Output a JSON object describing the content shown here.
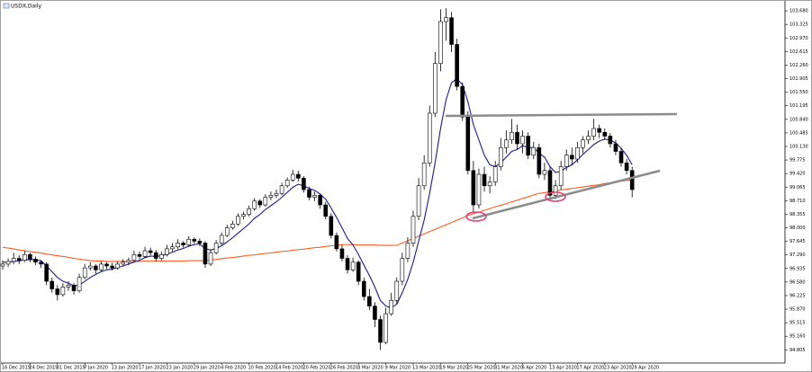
{
  "chart_data": {
    "type": "candlestick",
    "title": "USDX,Daily",
    "categories": [
      "16 Dec 2019",
      null,
      null,
      null,
      null,
      "24 Dec 2019",
      null,
      null,
      null,
      null,
      "31 Dec 2019",
      null,
      null,
      null,
      null,
      "7 Jan 2020",
      null,
      null,
      null,
      null,
      "13 Jan 2020",
      null,
      null,
      null,
      null,
      "17 Jan 2020",
      null,
      null,
      null,
      null,
      "23 Jan 2020",
      null,
      null,
      null,
      null,
      "29 Jan 2020",
      null,
      null,
      null,
      null,
      "4 Feb 2020",
      null,
      null,
      null,
      null,
      "10 Feb 2020",
      null,
      null,
      null,
      null,
      "14 Feb 2020",
      null,
      null,
      null,
      null,
      "20 Feb 2020",
      null,
      null,
      null,
      null,
      "26 Feb 2020",
      null,
      null,
      null,
      null,
      "3 Mar 2020",
      null,
      null,
      null,
      null,
      "9 Mar 2020",
      null,
      null,
      null,
      null,
      "13 Mar 2020",
      null,
      null,
      null,
      null,
      "19 Mar 2020",
      null,
      null,
      null,
      null,
      "25 Mar 2020",
      null,
      null,
      null,
      null,
      "31 Mar 2020",
      null,
      null,
      null,
      null,
      "6 Apr 2020",
      null,
      null,
      null,
      null,
      "13 Apr 2020",
      null,
      null,
      null,
      null,
      "17 Apr 2020",
      null,
      null,
      null,
      null,
      "23 Apr 2020",
      null,
      null,
      null,
      null,
      "29 Apr 2020"
    ],
    "ohlc": [
      [
        97.0,
        97.15,
        96.9,
        97.05
      ],
      [
        97.05,
        97.2,
        96.98,
        97.12
      ],
      [
        97.12,
        97.35,
        97.05,
        97.2
      ],
      [
        97.2,
        97.28,
        97.05,
        97.15
      ],
      [
        97.15,
        97.4,
        97.1,
        97.3
      ],
      [
        97.3,
        97.35,
        97.1,
        97.18
      ],
      [
        97.18,
        97.25,
        97.02,
        97.1
      ],
      [
        97.1,
        97.15,
        96.95,
        97.05
      ],
      [
        97.05,
        97.1,
        96.5,
        96.6
      ],
      [
        96.6,
        96.7,
        96.3,
        96.4
      ],
      [
        96.4,
        96.5,
        96.1,
        96.25
      ],
      [
        96.25,
        96.55,
        96.2,
        96.45
      ],
      [
        96.45,
        96.6,
        96.35,
        96.5
      ],
      [
        96.5,
        96.55,
        96.25,
        96.35
      ],
      [
        96.35,
        96.8,
        96.3,
        96.7
      ],
      [
        96.7,
        97.05,
        96.65,
        96.95
      ],
      [
        96.95,
        97.1,
        96.88,
        97.0
      ],
      [
        97.0,
        97.05,
        96.8,
        96.9
      ],
      [
        96.9,
        97.12,
        96.85,
        97.05
      ],
      [
        97.05,
        97.1,
        96.92,
        97.0
      ],
      [
        97.0,
        97.08,
        96.88,
        96.95
      ],
      [
        96.95,
        97.12,
        96.9,
        97.05
      ],
      [
        97.05,
        97.18,
        97.0,
        97.1
      ],
      [
        97.1,
        97.22,
        97.02,
        97.15
      ],
      [
        97.15,
        97.4,
        97.1,
        97.3
      ],
      [
        97.3,
        97.38,
        97.18,
        97.25
      ],
      [
        97.25,
        97.5,
        97.2,
        97.4
      ],
      [
        97.4,
        97.48,
        97.28,
        97.35
      ],
      [
        97.35,
        97.42,
        97.12,
        97.2
      ],
      [
        97.2,
        97.38,
        97.15,
        97.3
      ],
      [
        97.3,
        97.55,
        97.25,
        97.45
      ],
      [
        97.45,
        97.6,
        97.38,
        97.5
      ],
      [
        97.5,
        97.7,
        97.45,
        97.6
      ],
      [
        97.6,
        97.65,
        97.48,
        97.55
      ],
      [
        97.55,
        97.78,
        97.5,
        97.7
      ],
      [
        97.7,
        97.75,
        97.58,
        97.65
      ],
      [
        97.65,
        97.72,
        97.52,
        97.6
      ],
      [
        97.6,
        97.65,
        96.95,
        97.05
      ],
      [
        97.05,
        97.42,
        97.0,
        97.35
      ],
      [
        97.35,
        97.68,
        97.3,
        97.6
      ],
      [
        97.6,
        97.88,
        97.55,
        97.8
      ],
      [
        97.8,
        98.08,
        97.75,
        98.0
      ],
      [
        98.0,
        98.18,
        97.95,
        98.1
      ],
      [
        98.1,
        98.38,
        98.05,
        98.3
      ],
      [
        98.3,
        98.42,
        98.22,
        98.35
      ],
      [
        98.35,
        98.58,
        98.3,
        98.5
      ],
      [
        98.5,
        98.78,
        98.45,
        98.7
      ],
      [
        98.7,
        98.75,
        98.52,
        98.6
      ],
      [
        98.6,
        98.88,
        98.55,
        98.8
      ],
      [
        98.8,
        98.95,
        98.72,
        98.85
      ],
      [
        98.85,
        99.0,
        98.78,
        98.9
      ],
      [
        98.9,
        99.18,
        98.85,
        99.1
      ],
      [
        99.1,
        99.32,
        99.05,
        99.25
      ],
      [
        99.25,
        99.52,
        99.2,
        99.4
      ],
      [
        99.4,
        99.5,
        99.22,
        99.3
      ],
      [
        99.3,
        99.35,
        98.92,
        99.0
      ],
      [
        99.0,
        99.08,
        98.72,
        98.8
      ],
      [
        98.8,
        98.95,
        98.7,
        98.85
      ],
      [
        98.85,
        98.9,
        98.5,
        98.6
      ],
      [
        98.6,
        98.68,
        98.22,
        98.3
      ],
      [
        98.3,
        98.38,
        97.72,
        97.8
      ],
      [
        97.8,
        97.88,
        97.38,
        97.45
      ],
      [
        97.45,
        97.55,
        97.12,
        97.2
      ],
      [
        97.2,
        97.28,
        96.8,
        96.9
      ],
      [
        96.9,
        97.22,
        96.85,
        97.1
      ],
      [
        97.1,
        97.15,
        96.5,
        96.6
      ],
      [
        96.6,
        96.7,
        96.1,
        96.2
      ],
      [
        96.2,
        96.4,
        95.85,
        95.95
      ],
      [
        95.95,
        96.05,
        95.4,
        95.6
      ],
      [
        95.6,
        95.7,
        94.8,
        95.0
      ],
      [
        95.0,
        95.9,
        94.95,
        95.75
      ],
      [
        95.75,
        96.3,
        95.7,
        96.1
      ],
      [
        96.1,
        96.7,
        96.0,
        96.6
      ],
      [
        96.6,
        97.35,
        96.5,
        97.2
      ],
      [
        97.2,
        97.75,
        97.1,
        97.6
      ],
      [
        97.6,
        98.45,
        97.5,
        98.3
      ],
      [
        98.3,
        99.3,
        98.2,
        99.1
      ],
      [
        99.1,
        99.9,
        99.0,
        99.7
      ],
      [
        99.7,
        101.2,
        99.6,
        101.0
      ],
      [
        101.0,
        102.6,
        100.9,
        102.3
      ],
      [
        102.3,
        103.72,
        102.1,
        103.4
      ],
      [
        103.4,
        103.75,
        102.9,
        103.5
      ],
      [
        103.5,
        103.65,
        102.6,
        102.8
      ],
      [
        102.8,
        102.95,
        101.6,
        101.7
      ],
      [
        101.7,
        101.8,
        100.8,
        100.9
      ],
      [
        100.9,
        101.05,
        99.4,
        99.5
      ],
      [
        99.5,
        99.75,
        98.4,
        98.6
      ],
      [
        98.6,
        99.55,
        98.5,
        99.4
      ],
      [
        99.4,
        99.6,
        98.95,
        99.1
      ],
      [
        99.1,
        99.35,
        98.9,
        99.2
      ],
      [
        99.2,
        99.75,
        99.1,
        99.6
      ],
      [
        99.6,
        100.35,
        99.5,
        100.1
      ],
      [
        100.1,
        100.55,
        99.95,
        100.3
      ],
      [
        100.3,
        100.85,
        100.2,
        100.5
      ],
      [
        100.5,
        100.7,
        100.05,
        100.2
      ],
      [
        100.2,
        100.55,
        99.95,
        100.4
      ],
      [
        100.4,
        100.5,
        99.8,
        99.9
      ],
      [
        99.9,
        100.25,
        99.8,
        100.1
      ],
      [
        100.1,
        100.2,
        99.3,
        99.4
      ],
      [
        99.4,
        99.7,
        99.25,
        99.5
      ],
      [
        99.5,
        99.6,
        98.7,
        98.85
      ],
      [
        98.85,
        99.25,
        98.75,
        99.1
      ],
      [
        99.1,
        99.75,
        99.0,
        99.6
      ],
      [
        99.6,
        100.05,
        99.5,
        99.9
      ],
      [
        99.9,
        100.1,
        99.65,
        99.8
      ],
      [
        99.8,
        100.25,
        99.7,
        100.1
      ],
      [
        100.1,
        100.4,
        99.95,
        100.3
      ],
      [
        100.3,
        100.55,
        100.2,
        100.4
      ],
      [
        100.4,
        100.85,
        100.3,
        100.6
      ],
      [
        100.6,
        100.7,
        100.35,
        100.5
      ],
      [
        100.5,
        100.6,
        100.3,
        100.4
      ],
      [
        100.4,
        100.48,
        100.1,
        100.2
      ],
      [
        100.2,
        100.3,
        99.9,
        100.0
      ],
      [
        100.0,
        100.1,
        99.6,
        99.7
      ],
      [
        99.7,
        99.8,
        99.4,
        99.5
      ],
      [
        99.5,
        99.6,
        98.8,
        99.0
      ]
    ],
    "up_color": "#ffffff",
    "down_color": "#000000",
    "overlays": [
      {
        "color": "#ff5a1f",
        "values": [
          97.49,
          97.47,
          97.45,
          97.42,
          97.4,
          97.38,
          97.36,
          97.34,
          97.31,
          97.29,
          97.27,
          97.25,
          97.23,
          97.2,
          97.18,
          97.16,
          97.14,
          97.13,
          97.13,
          97.12,
          97.12,
          97.12,
          97.12,
          97.12,
          97.12,
          97.12,
          97.13,
          97.13,
          97.13,
          97.13,
          97.13,
          97.13,
          97.13,
          97.13,
          97.14,
          97.14,
          97.14,
          97.14,
          97.16,
          97.17,
          97.19,
          97.21,
          97.22,
          97.24,
          97.26,
          97.28,
          97.29,
          97.31,
          97.33,
          97.34,
          97.36,
          97.38,
          97.39,
          97.41,
          97.43,
          97.44,
          97.46,
          97.48,
          97.49,
          97.51,
          97.53,
          97.54,
          97.56,
          97.56,
          97.56,
          97.55,
          97.55,
          97.55,
          97.55,
          97.54,
          97.54,
          97.54,
          97.54,
          97.6,
          97.66,
          97.72,
          97.78,
          97.84,
          97.9,
          97.96,
          98.02,
          98.08,
          98.14,
          98.2,
          98.26,
          98.32,
          98.37,
          98.41,
          98.46,
          98.5,
          98.55,
          98.59,
          98.63,
          98.68,
          98.72,
          98.77,
          98.81,
          98.86,
          98.9,
          98.92,
          98.94,
          98.96,
          98.99,
          99.01,
          99.03,
          99.05,
          99.07,
          99.09,
          99.11,
          99.13,
          99.16,
          99.18,
          99.2,
          99.22,
          99.24,
          99.26
        ]
      },
      {
        "color": "#1a1a8c",
        "values": [
          97.1,
          97.1,
          97.12,
          97.13,
          97.16,
          97.17,
          97.16,
          97.14,
          97.0,
          96.85,
          96.7,
          96.6,
          96.55,
          96.48,
          96.5,
          96.6,
          96.7,
          96.78,
          96.85,
          96.9,
          96.92,
          96.96,
          97.0,
          97.05,
          97.1,
          97.15,
          97.22,
          97.26,
          97.25,
          97.27,
          97.31,
          97.36,
          97.42,
          97.46,
          97.52,
          97.56,
          97.58,
          97.45,
          97.42,
          97.46,
          97.53,
          97.63,
          97.74,
          97.86,
          97.98,
          98.1,
          98.25,
          98.35,
          98.48,
          98.58,
          98.68,
          98.8,
          98.93,
          99.06,
          99.14,
          99.1,
          99.03,
          98.98,
          98.88,
          98.75,
          98.52,
          98.27,
          98.0,
          97.72,
          97.55,
          97.3,
          97.02,
          96.75,
          96.45,
          96.1,
          95.95,
          95.9,
          96.0,
          96.3,
          96.65,
          97.1,
          97.65,
          98.2,
          98.9,
          99.7,
          100.6,
          101.35,
          101.8,
          101.9,
          101.75,
          101.3,
          100.7,
          100.3,
          99.9,
          99.65,
          99.6,
          99.7,
          99.85,
          100.0,
          100.05,
          100.15,
          100.1,
          100.1,
          99.95,
          99.85,
          99.6,
          99.45,
          99.48,
          99.58,
          99.65,
          99.78,
          99.92,
          100.05,
          100.18,
          100.27,
          100.32,
          100.3,
          100.22,
          100.08,
          99.9,
          99.65
        ]
      }
    ],
    "ylim": [
      94.46,
      103.87
    ],
    "yticks": [
      {
        "value": 103.68,
        "label": "103.680"
      },
      {
        "value": 103.325,
        "label": "103.325"
      },
      {
        "value": 102.97,
        "label": "102.970"
      },
      {
        "value": 102.615,
        "label": "102.615"
      },
      {
        "value": 102.26,
        "label": "102.260"
      },
      {
        "value": 101.905,
        "label": "101.905"
      },
      {
        "value": 101.55,
        "label": "101.550"
      },
      {
        "value": 101.195,
        "label": "101.195"
      },
      {
        "value": 100.84,
        "label": "100.840"
      },
      {
        "value": 100.485,
        "label": "100.485"
      },
      {
        "value": 100.13,
        "label": "100.130"
      },
      {
        "value": 99.775,
        "label": "99.775"
      },
      {
        "value": 99.42,
        "label": "99.420"
      },
      {
        "value": 99.065,
        "label": "99.065"
      },
      {
        "value": 98.71,
        "label": "98.710"
      },
      {
        "value": 98.355,
        "label": "98.355"
      },
      {
        "value": 98.0,
        "label": "98.000"
      },
      {
        "value": 97.645,
        "label": "97.645"
      },
      {
        "value": 97.29,
        "label": "97.290"
      },
      {
        "value": 96.935,
        "label": "96.935"
      },
      {
        "value": 96.58,
        "label": "96.580"
      },
      {
        "value": 96.225,
        "label": "96.225"
      },
      {
        "value": 95.87,
        "label": "95.870"
      },
      {
        "value": 95.515,
        "label": "95.515"
      },
      {
        "value": 95.16,
        "label": "95.160"
      },
      {
        "value": 94.805,
        "label": "94.805"
      }
    ]
  }
}
